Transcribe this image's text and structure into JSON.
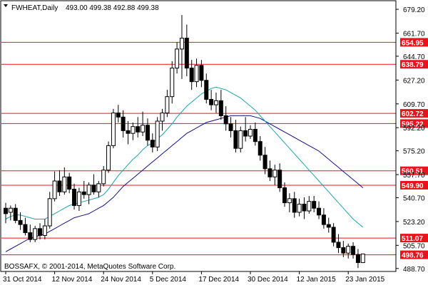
{
  "header": {
    "symbol_label": "FWHEAT,Daily",
    "ohlc_text": "493.00 499.38 492.88 499.38"
  },
  "footer": {
    "copyright": "BOSSAFX, © 2001-2014, MetaQuotes Software Corp."
  },
  "colors": {
    "resistance_line": "#e8141c",
    "ma_fast": "#1ca2a8",
    "ma_slow": "#101080",
    "candle_bull": "#ffffff",
    "candle_bear": "#000000"
  },
  "chart_data": {
    "type": "candlestick",
    "ylim": [
      486.5,
      685.0
    ],
    "y_ticks": [
      679.2,
      661.7,
      644.7,
      627.2,
      609.7,
      592.2,
      575.2,
      557.7,
      540.7,
      523.2,
      505.7,
      488.7
    ],
    "x_tick_labels": [
      "31 Oct 2014",
      "12 Nov 2014",
      "24 Nov 2014",
      "5 Dec 2014",
      "17 Dec 2014",
      "30 Dec 2014",
      "12 Jan 2015",
      "23 Jan 2015"
    ],
    "x_tick_bar_index": [
      0,
      10,
      20,
      30,
      40,
      50,
      60,
      70
    ],
    "horizontal_levels": [
      654.95,
      638.79,
      602.72,
      595.22,
      560.51,
      549.9,
      511.07,
      498.76
    ],
    "candles": [
      {
        "o": 533,
        "h": 537,
        "l": 522,
        "c": 529
      },
      {
        "o": 530,
        "h": 535,
        "l": 524,
        "c": 533
      },
      {
        "o": 533,
        "h": 536,
        "l": 522,
        "c": 524
      },
      {
        "o": 524,
        "h": 530,
        "l": 517,
        "c": 521
      },
      {
        "o": 521,
        "h": 526,
        "l": 513,
        "c": 515
      },
      {
        "o": 515,
        "h": 521,
        "l": 508,
        "c": 510
      },
      {
        "o": 510,
        "h": 520,
        "l": 508,
        "c": 518
      },
      {
        "o": 518,
        "h": 522,
        "l": 510,
        "c": 513
      },
      {
        "o": 513,
        "h": 525,
        "l": 510,
        "c": 520
      },
      {
        "o": 520,
        "h": 545,
        "l": 518,
        "c": 540
      },
      {
        "o": 540,
        "h": 560,
        "l": 538,
        "c": 553
      },
      {
        "o": 553,
        "h": 561,
        "l": 542,
        "c": 545
      },
      {
        "o": 545,
        "h": 563,
        "l": 543,
        "c": 556
      },
      {
        "o": 556,
        "h": 559,
        "l": 544,
        "c": 547
      },
      {
        "o": 547,
        "h": 551,
        "l": 532,
        "c": 535
      },
      {
        "o": 535,
        "h": 548,
        "l": 531,
        "c": 545
      },
      {
        "o": 545,
        "h": 553,
        "l": 540,
        "c": 543
      },
      {
        "o": 543,
        "h": 552,
        "l": 536,
        "c": 550
      },
      {
        "o": 550,
        "h": 558,
        "l": 543,
        "c": 545
      },
      {
        "o": 545,
        "h": 553,
        "l": 541,
        "c": 551
      },
      {
        "o": 551,
        "h": 564,
        "l": 549,
        "c": 561
      },
      {
        "o": 561,
        "h": 582,
        "l": 559,
        "c": 579
      },
      {
        "o": 579,
        "h": 606,
        "l": 577,
        "c": 603
      },
      {
        "o": 603,
        "h": 609,
        "l": 596,
        "c": 600
      },
      {
        "o": 600,
        "h": 605,
        "l": 585,
        "c": 590
      },
      {
        "o": 590,
        "h": 597,
        "l": 580,
        "c": 588
      },
      {
        "o": 588,
        "h": 596,
        "l": 583,
        "c": 593
      },
      {
        "o": 593,
        "h": 600,
        "l": 585,
        "c": 589
      },
      {
        "o": 589,
        "h": 604,
        "l": 586,
        "c": 594
      },
      {
        "o": 594,
        "h": 599,
        "l": 579,
        "c": 583
      },
      {
        "o": 583,
        "h": 588,
        "l": 574,
        "c": 578
      },
      {
        "o": 578,
        "h": 600,
        "l": 575,
        "c": 597
      },
      {
        "o": 597,
        "h": 606,
        "l": 590,
        "c": 603
      },
      {
        "o": 603,
        "h": 620,
        "l": 600,
        "c": 615
      },
      {
        "o": 615,
        "h": 641,
        "l": 610,
        "c": 636
      },
      {
        "o": 636,
        "h": 655,
        "l": 632,
        "c": 650
      },
      {
        "o": 650,
        "h": 675,
        "l": 628,
        "c": 658
      },
      {
        "o": 658,
        "h": 668,
        "l": 630,
        "c": 636
      },
      {
        "o": 636,
        "h": 642,
        "l": 620,
        "c": 626
      },
      {
        "o": 626,
        "h": 643,
        "l": 622,
        "c": 638
      },
      {
        "o": 638,
        "h": 642,
        "l": 622,
        "c": 627
      },
      {
        "o": 627,
        "h": 632,
        "l": 610,
        "c": 613
      },
      {
        "o": 613,
        "h": 620,
        "l": 605,
        "c": 609
      },
      {
        "o": 609,
        "h": 618,
        "l": 603,
        "c": 612
      },
      {
        "o": 612,
        "h": 620,
        "l": 598,
        "c": 601
      },
      {
        "o": 601,
        "h": 608,
        "l": 590,
        "c": 595
      },
      {
        "o": 595,
        "h": 600,
        "l": 585,
        "c": 590
      },
      {
        "o": 590,
        "h": 598,
        "l": 574,
        "c": 577
      },
      {
        "o": 577,
        "h": 593,
        "l": 574,
        "c": 590
      },
      {
        "o": 590,
        "h": 600,
        "l": 582,
        "c": 586
      },
      {
        "o": 586,
        "h": 594,
        "l": 584,
        "c": 591
      },
      {
        "o": 591,
        "h": 596,
        "l": 579,
        "c": 582
      },
      {
        "o": 582,
        "h": 586,
        "l": 568,
        "c": 572
      },
      {
        "o": 572,
        "h": 578,
        "l": 558,
        "c": 562
      },
      {
        "o": 562,
        "h": 568,
        "l": 553,
        "c": 556
      },
      {
        "o": 556,
        "h": 565,
        "l": 550,
        "c": 561
      },
      {
        "o": 561,
        "h": 566,
        "l": 545,
        "c": 548
      },
      {
        "o": 548,
        "h": 552,
        "l": 534,
        "c": 537
      },
      {
        "o": 537,
        "h": 544,
        "l": 530,
        "c": 540
      },
      {
        "o": 540,
        "h": 545,
        "l": 526,
        "c": 530
      },
      {
        "o": 530,
        "h": 540,
        "l": 527,
        "c": 536
      },
      {
        "o": 536,
        "h": 541,
        "l": 525,
        "c": 531
      },
      {
        "o": 531,
        "h": 542,
        "l": 529,
        "c": 538
      },
      {
        "o": 538,
        "h": 542,
        "l": 530,
        "c": 533
      },
      {
        "o": 533,
        "h": 538,
        "l": 525,
        "c": 528
      },
      {
        "o": 528,
        "h": 533,
        "l": 518,
        "c": 521
      },
      {
        "o": 521,
        "h": 526,
        "l": 515,
        "c": 519
      },
      {
        "o": 519,
        "h": 522,
        "l": 505,
        "c": 508
      },
      {
        "o": 508,
        "h": 514,
        "l": 500,
        "c": 504
      },
      {
        "o": 504,
        "h": 509,
        "l": 497,
        "c": 500
      },
      {
        "o": 500,
        "h": 507,
        "l": 496,
        "c": 505
      },
      {
        "o": 505,
        "h": 508,
        "l": 496,
        "c": 499
      },
      {
        "o": 499,
        "h": 503,
        "l": 489,
        "c": 493
      },
      {
        "o": 493,
        "h": 499.38,
        "l": 492.88,
        "c": 499.38
      }
    ],
    "ma_fast": [
      525,
      527,
      528,
      528,
      527,
      526,
      525,
      525,
      525,
      527,
      529,
      531,
      533,
      535,
      536,
      537,
      538,
      539,
      540,
      541,
      543,
      547,
      552,
      557,
      561,
      565,
      569,
      572,
      576,
      579,
      581,
      584,
      587,
      591,
      595,
      600,
      604,
      608,
      611,
      614,
      617,
      619,
      621,
      622,
      621,
      620,
      618,
      616,
      614,
      611,
      608,
      605,
      601,
      597,
      593,
      589,
      585,
      581,
      577,
      573,
      569,
      565,
      561,
      557,
      553,
      549,
      545,
      541,
      537,
      533,
      529,
      525,
      522,
      519
    ],
    "ma_slow": [
      501,
      503,
      505,
      507,
      509,
      511,
      512,
      513,
      514,
      516,
      518,
      520,
      522,
      524,
      526,
      527,
      528,
      529,
      531,
      533,
      535,
      538,
      541,
      545,
      549,
      552,
      555,
      558,
      561,
      564,
      567,
      570,
      573,
      576,
      579,
      582,
      585,
      588,
      590,
      592,
      594,
      596,
      597,
      598,
      599,
      600,
      601,
      601,
      601,
      601,
      601,
      600,
      599,
      597,
      595,
      593,
      591,
      589,
      587,
      585,
      583,
      581,
      579,
      577,
      575,
      572,
      569,
      566,
      563,
      560,
      557,
      554,
      551,
      548
    ]
  }
}
